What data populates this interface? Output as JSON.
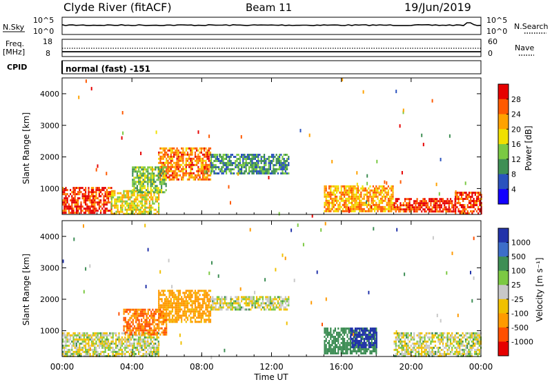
{
  "header": {
    "station": "Clyde River (fitACF)",
    "beam": "Beam 11",
    "date": "19/Jun/2019"
  },
  "nsky_panel": {
    "left_label": "N.Sky",
    "left_ticks": [
      "10^5",
      "10^0"
    ],
    "right_label": "N.Search",
    "right_ticks": [
      "10^5",
      "10^0"
    ]
  },
  "freq_panel": {
    "left_label_1": "Freq.",
    "left_label_2": "[MHz]",
    "left_ticks": [
      "18",
      "8"
    ],
    "right_label": "Nave",
    "right_ticks": [
      "60",
      "0"
    ]
  },
  "cpid": {
    "label": "CPID",
    "mode": "normal (fast) -151"
  },
  "x_axis": {
    "label": "Time UT",
    "ticks": [
      "00:00",
      "04:00",
      "08:00",
      "12:00",
      "16:00",
      "20:00",
      "00:00"
    ]
  },
  "colorbars": {
    "power": {
      "label": "Power [dB]",
      "ticks": [
        "28",
        "24",
        "20",
        "16",
        "12",
        "8",
        "4"
      ],
      "colors": [
        "#e60000",
        "#ff5a00",
        "#ffa200",
        "#f0e000",
        "#7ac943",
        "#3f8f55",
        "#2a52be",
        "#1200ff"
      ]
    },
    "velocity": {
      "label": "Velocity [m s⁻¹]",
      "ticks": [
        "1000",
        "500",
        "100",
        "25",
        "-25",
        "-100",
        "-500",
        "-1000"
      ],
      "colors": [
        "#2233aa",
        "#3d6ec9",
        "#3e8e55",
        "#7cc943",
        "#c8c8c8",
        "#f0c000",
        "#ff9a00",
        "#ff5000",
        "#e60000"
      ]
    }
  },
  "chart_data": [
    {
      "type": "heatmap",
      "name": "power",
      "ylabel": "Slant Range [km]",
      "xlabel": "",
      "xlim": [
        0,
        24
      ],
      "ylim": [
        180,
        4500
      ],
      "yticks": [
        "1000",
        "2000",
        "3000",
        "4000"
      ],
      "color_scale": "Power [dB]",
      "regions": [
        {
          "t0": 0.0,
          "t1": 2.8,
          "r0": 200,
          "r1": 1050,
          "level": 28
        },
        {
          "t0": 2.8,
          "t1": 5.5,
          "r0": 200,
          "r1": 950,
          "level": 18
        },
        {
          "t0": 5.5,
          "t1": 8.5,
          "r0": 1300,
          "r1": 2300,
          "level": 24
        },
        {
          "t0": 4.0,
          "t1": 6.0,
          "r0": 900,
          "r1": 1700,
          "level": 14
        },
        {
          "t0": 8.5,
          "t1": 13.0,
          "r0": 1500,
          "r1": 2100,
          "level": 10
        },
        {
          "t0": 15.0,
          "t1": 19.0,
          "r0": 300,
          "r1": 1100,
          "level": 22
        },
        {
          "t0": 19.0,
          "t1": 22.5,
          "r0": 300,
          "r1": 700,
          "level": 28
        },
        {
          "t0": 22.5,
          "t1": 24.0,
          "r0": 200,
          "r1": 900,
          "level": 28
        }
      ]
    },
    {
      "type": "heatmap",
      "name": "velocity",
      "ylabel": "Slant Range [km]",
      "xlabel": "Time UT",
      "xlim": [
        0,
        24
      ],
      "ylim": [
        180,
        4500
      ],
      "yticks": [
        "1000",
        "2000",
        "3000",
        "4000"
      ],
      "color_scale": "Velocity [m s⁻¹]",
      "regions": [
        {
          "t0": 0.0,
          "t1": 5.5,
          "r0": 200,
          "r1": 950,
          "level": 0
        },
        {
          "t0": 5.5,
          "t1": 8.5,
          "r0": 1300,
          "r1": 2300,
          "level": -150
        },
        {
          "t0": 3.5,
          "t1": 6.0,
          "r0": 900,
          "r1": 1700,
          "level": -300
        },
        {
          "t0": 8.5,
          "t1": 13.0,
          "r0": 1700,
          "r1": 2100,
          "level": 0
        },
        {
          "t0": 15.0,
          "t1": 18.0,
          "r0": 300,
          "r1": 1100,
          "level": 200
        },
        {
          "t0": 16.5,
          "t1": 18.0,
          "r0": 500,
          "r1": 1100,
          "level": 900
        },
        {
          "t0": 19.0,
          "t1": 24.0,
          "r0": 200,
          "r1": 950,
          "level": 0
        }
      ]
    }
  ]
}
